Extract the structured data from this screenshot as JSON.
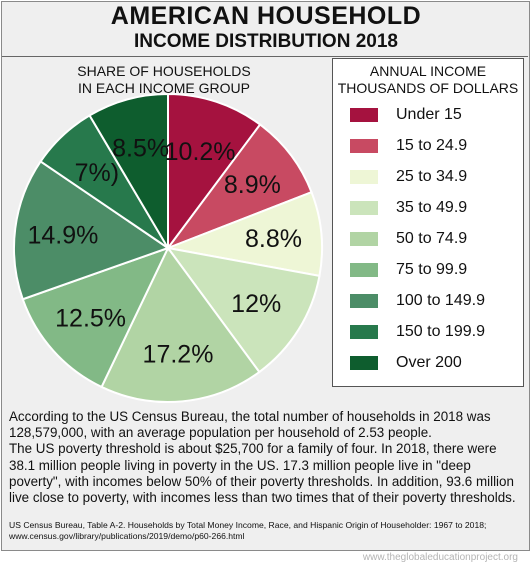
{
  "title": "AMERICAN HOUSEHOLD",
  "subtitle": "INCOME DISTRIBUTION 2018",
  "pie_caption": {
    "line1": "SHARE OF HOUSEHOLDS",
    "line2": "IN EACH INCOME GROUP"
  },
  "legend": {
    "title_line1": "ANNUAL INCOME",
    "title_line2": "THOUSANDS OF DOLLARS"
  },
  "chart_data": {
    "type": "pie",
    "title": "SHARE OF HOUSEHOLDS IN EACH INCOME GROUP",
    "legend_title": "ANNUAL INCOME THOUSANDS OF DOLLARS",
    "legend_position": "right",
    "slices": [
      {
        "label": "Under 15",
        "value": 10.2,
        "value_text": "10.2%",
        "color": "#a5123f"
      },
      {
        "label": "15 to 24.9",
        "value": 8.9,
        "value_text": "8.9%",
        "color": "#c84a62"
      },
      {
        "label": "25 to 34.9",
        "value": 8.8,
        "value_text": "8.8%",
        "color": "#eef6d6"
      },
      {
        "label": "35 to 49.9",
        "value": 12,
        "value_text": "12%",
        "color": "#cbe4bb"
      },
      {
        "label": "50 to 74.9",
        "value": 17.2,
        "value_text": "17.2%",
        "color": "#b1d4a4"
      },
      {
        "label": "75 to 99.9",
        "value": 12.5,
        "value_text": "12.5%",
        "color": "#82b986"
      },
      {
        "label": "100 to 149.9",
        "value": 14.9,
        "value_text": "14.9%",
        "color": "#4c8d67"
      },
      {
        "label": "150 to 199.9",
        "value": 7,
        "value_text": "7%)",
        "color": "#27794c"
      },
      {
        "label": "Over 200",
        "value": 8.5,
        "value_text": "8.5%",
        "color": "#0e5d2e"
      }
    ]
  },
  "body": {
    "para1": "According to the US Census Bureau, the total number of households in 2018 was 128,579,000, with an average population per household of 2.53 people.",
    "para2": "The US poverty threshold is about $25,700 for a family of four. In 2018, there were 38.1 million people living in poverty in the US. 17.3 million people live in \"deep poverty\", with incomes below 50% of their poverty thresholds. In addition, 93.6 million live close to poverty, with incomes less than two times that of their poverty thresholds."
  },
  "source": {
    "line1": "US Census Bureau, Table A-2. Households by Total Money Income, Race, and Hispanic Origin of Householder: 1967 to 2018;",
    "line2": "www.census.gov/library/publications/2019/demo/p60-266.html"
  },
  "credit": "www.theglobaleducationproject.org"
}
